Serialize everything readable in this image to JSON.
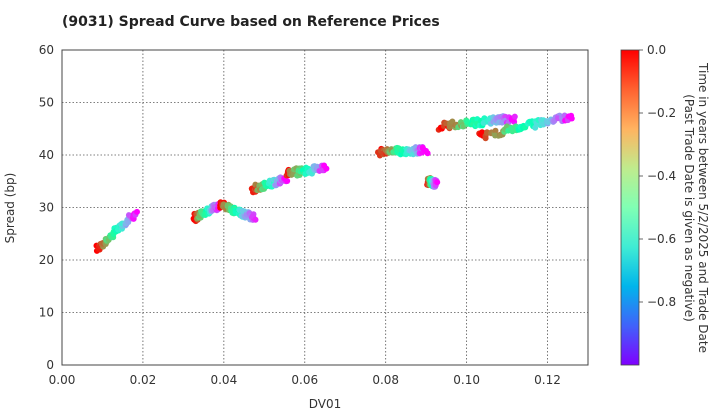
{
  "chart_data": {
    "type": "scatter",
    "title": "(9031)   Spread Curve based on Reference Prices",
    "xlabel": "DV01",
    "ylabel": "Spread (bp)",
    "xlim": [
      0.0,
      0.13
    ],
    "ylim": [
      0,
      60
    ],
    "xticks": [
      "0.00",
      "0.02",
      "0.04",
      "0.06",
      "0.08",
      "0.10",
      "0.12"
    ],
    "yticks": [
      "0",
      "10",
      "20",
      "30",
      "40",
      "50",
      "60"
    ],
    "grid": true,
    "colorbar": {
      "label_line1": "Time in years between 5/2/2025 and Trade Date",
      "label_line2": "(Past Trade Date is given as negative)",
      "range": [
        -1.0,
        0.0
      ],
      "ticks": [
        "0.0",
        "−0.2",
        "−0.4",
        "−0.6",
        "−0.8"
      ],
      "colormap": "rainbow"
    },
    "clusters": [
      {
        "x0": 0.0085,
        "y0": 22.0,
        "x1": 0.0182,
        "y1": 29.0
      },
      {
        "x0": 0.0325,
        "y0": 28.0,
        "x1": 0.039,
        "y1": 30.5
      },
      {
        "x0": 0.039,
        "y0": 30.5,
        "x1": 0.0475,
        "y1": 28.0
      },
      {
        "x0": 0.047,
        "y0": 33.5,
        "x1": 0.0555,
        "y1": 35.5
      },
      {
        "x0": 0.0555,
        "y0": 36.5,
        "x1": 0.065,
        "y1": 37.5
      },
      {
        "x0": 0.0785,
        "y0": 40.5,
        "x1": 0.09,
        "y1": 41.0
      },
      {
        "x0": 0.0905,
        "y0": 35.0,
        "x1": 0.0925,
        "y1": 34.5
      },
      {
        "x0": 0.0935,
        "y0": 45.5,
        "x1": 0.112,
        "y1": 47.0
      },
      {
        "x0": 0.103,
        "y0": 43.5,
        "x1": 0.126,
        "y1": 47.5
      }
    ]
  }
}
